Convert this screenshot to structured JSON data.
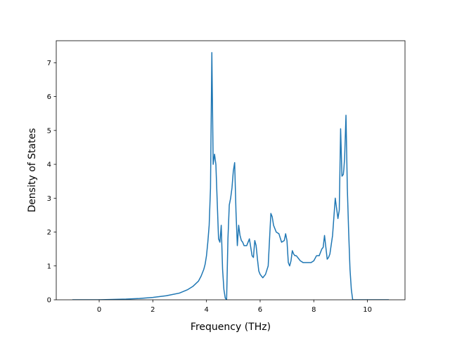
{
  "chart_data": {
    "type": "line",
    "title": "",
    "xlabel": "Frequency (THz)",
    "ylabel": "Density of States",
    "xlim": [
      -1.6,
      11.4
    ],
    "ylim": [
      0,
      7.65
    ],
    "xticks": [
      0,
      2,
      4,
      6,
      8,
      10
    ],
    "yticks": [
      0,
      1,
      2,
      3,
      4,
      5,
      6,
      7
    ],
    "grid": false,
    "color": "#1f77b4",
    "series": [
      {
        "x": [
          -1.0,
          -0.5,
          0.0,
          0.5,
          1.0,
          1.5,
          2.0,
          2.5,
          3.0,
          3.3,
          3.5,
          3.7,
          3.8,
          3.9,
          3.95,
          4.0,
          4.05,
          4.1,
          4.15,
          4.2,
          4.25,
          4.3,
          4.35,
          4.4,
          4.45,
          4.5,
          4.55,
          4.6,
          4.65,
          4.7,
          4.75,
          4.8,
          4.85,
          4.9,
          4.95,
          5.0,
          5.05,
          5.1,
          5.15,
          5.2,
          5.25,
          5.3,
          5.35,
          5.4,
          5.5,
          5.6,
          5.7,
          5.75,
          5.8,
          5.85,
          5.9,
          5.95,
          6.0,
          6.05,
          6.1,
          6.2,
          6.3,
          6.4,
          6.45,
          6.5,
          6.55,
          6.6,
          6.7,
          6.8,
          6.9,
          6.95,
          7.0,
          7.05,
          7.1,
          7.15,
          7.2,
          7.25,
          7.3,
          7.35,
          7.4,
          7.45,
          7.5,
          7.6,
          7.7,
          7.8,
          7.9,
          8.0,
          8.1,
          8.2,
          8.3,
          8.35,
          8.4,
          8.5,
          8.55,
          8.6,
          8.7,
          8.8,
          8.9,
          8.95,
          9.0,
          9.05,
          9.1,
          9.12,
          9.15,
          9.2,
          9.25,
          9.3,
          9.35,
          9.4,
          9.45,
          9.5,
          9.55,
          9.6,
          9.65,
          9.7,
          9.75,
          9.8,
          10.0,
          10.5,
          10.8
        ],
        "y": [
          0.0,
          0.0,
          0.0,
          0.01,
          0.02,
          0.04,
          0.07,
          0.12,
          0.2,
          0.3,
          0.4,
          0.55,
          0.7,
          0.9,
          1.05,
          1.3,
          1.7,
          2.2,
          3.3,
          7.3,
          4.0,
          4.3,
          4.0,
          2.9,
          1.8,
          1.7,
          2.2,
          0.9,
          0.3,
          0.05,
          0.0,
          1.8,
          2.8,
          3.0,
          3.3,
          3.8,
          4.05,
          2.6,
          1.6,
          2.2,
          1.9,
          1.75,
          1.7,
          1.6,
          1.6,
          1.8,
          1.3,
          1.25,
          1.75,
          1.6,
          1.2,
          0.85,
          0.75,
          0.7,
          0.65,
          0.75,
          1.0,
          2.55,
          2.45,
          2.2,
          2.1,
          2.0,
          1.95,
          1.7,
          1.75,
          1.95,
          1.75,
          1.1,
          1.0,
          1.15,
          1.45,
          1.35,
          1.3,
          1.3,
          1.25,
          1.2,
          1.15,
          1.1,
          1.1,
          1.1,
          1.1,
          1.15,
          1.3,
          1.3,
          1.5,
          1.55,
          1.9,
          1.2,
          1.25,
          1.35,
          1.9,
          3.0,
          2.4,
          2.65,
          5.05,
          3.65,
          3.7,
          3.85,
          4.2,
          5.45,
          3.3,
          2.0,
          0.9,
          0.3,
          0.0,
          0.0,
          0.0,
          0.0,
          0.0,
          0.0,
          0.0,
          0.0,
          0.0,
          0.0,
          0.0
        ]
      }
    ]
  }
}
